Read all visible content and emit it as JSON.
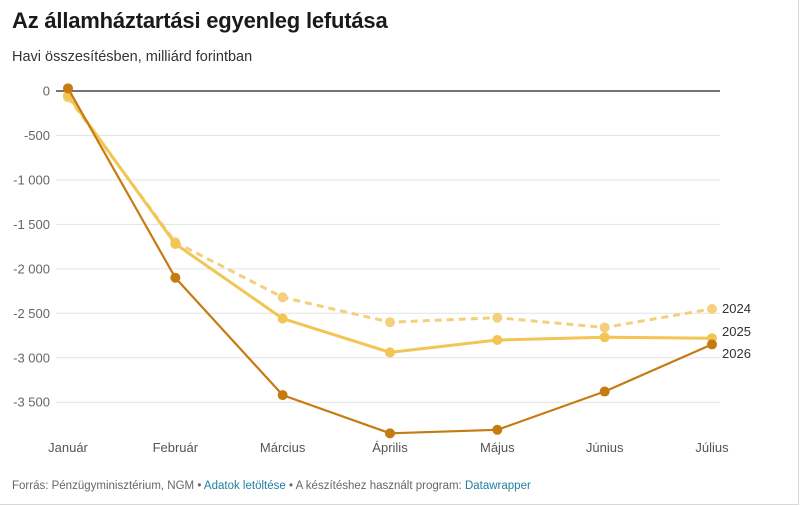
{
  "title": "Az államháztartási egyenleg lefutása",
  "subtitle": "Havi összesítésben, milliárd forintban",
  "footer": {
    "source_text": "Forrás: Pénzügyminisztérium, NGM",
    "sep1": " • ",
    "download_link": "Adatok letöltése",
    "sep2": " • ",
    "made_with_text": "A készítéshez használt program: ",
    "datawrapper_link": "Datawrapper"
  },
  "chart_data": {
    "type": "line",
    "categories": [
      "Január",
      "Február",
      "Március",
      "Április",
      "Május",
      "Június",
      "Július"
    ],
    "ylim": [
      -3850,
      0
    ],
    "yticks": [
      0,
      -500,
      -1000,
      -1500,
      -2000,
      -2500,
      -3000,
      -3500
    ],
    "ytick_labels": [
      "0",
      "-500",
      "-1 000",
      "-1 500",
      "-2 000",
      "-2 500",
      "-3 000",
      "-3 500"
    ],
    "grid": true,
    "legend": "line-end labels",
    "series": [
      {
        "name": "2024",
        "color": "#f3cf7e",
        "dashed": true,
        "values": [
          -70,
          -1700,
          -2320,
          -2600,
          -2550,
          -2660,
          -2450
        ]
      },
      {
        "name": "2025",
        "color": "#f2c655",
        "dashed": false,
        "values": [
          -50,
          -1720,
          -2560,
          -2940,
          -2800,
          -2770,
          -2780
        ]
      },
      {
        "name": "2026",
        "color": "#c67a12",
        "dashed": false,
        "values": [
          30,
          -2100,
          -3420,
          -3850,
          -3810,
          -3380,
          -2850
        ]
      }
    ]
  }
}
